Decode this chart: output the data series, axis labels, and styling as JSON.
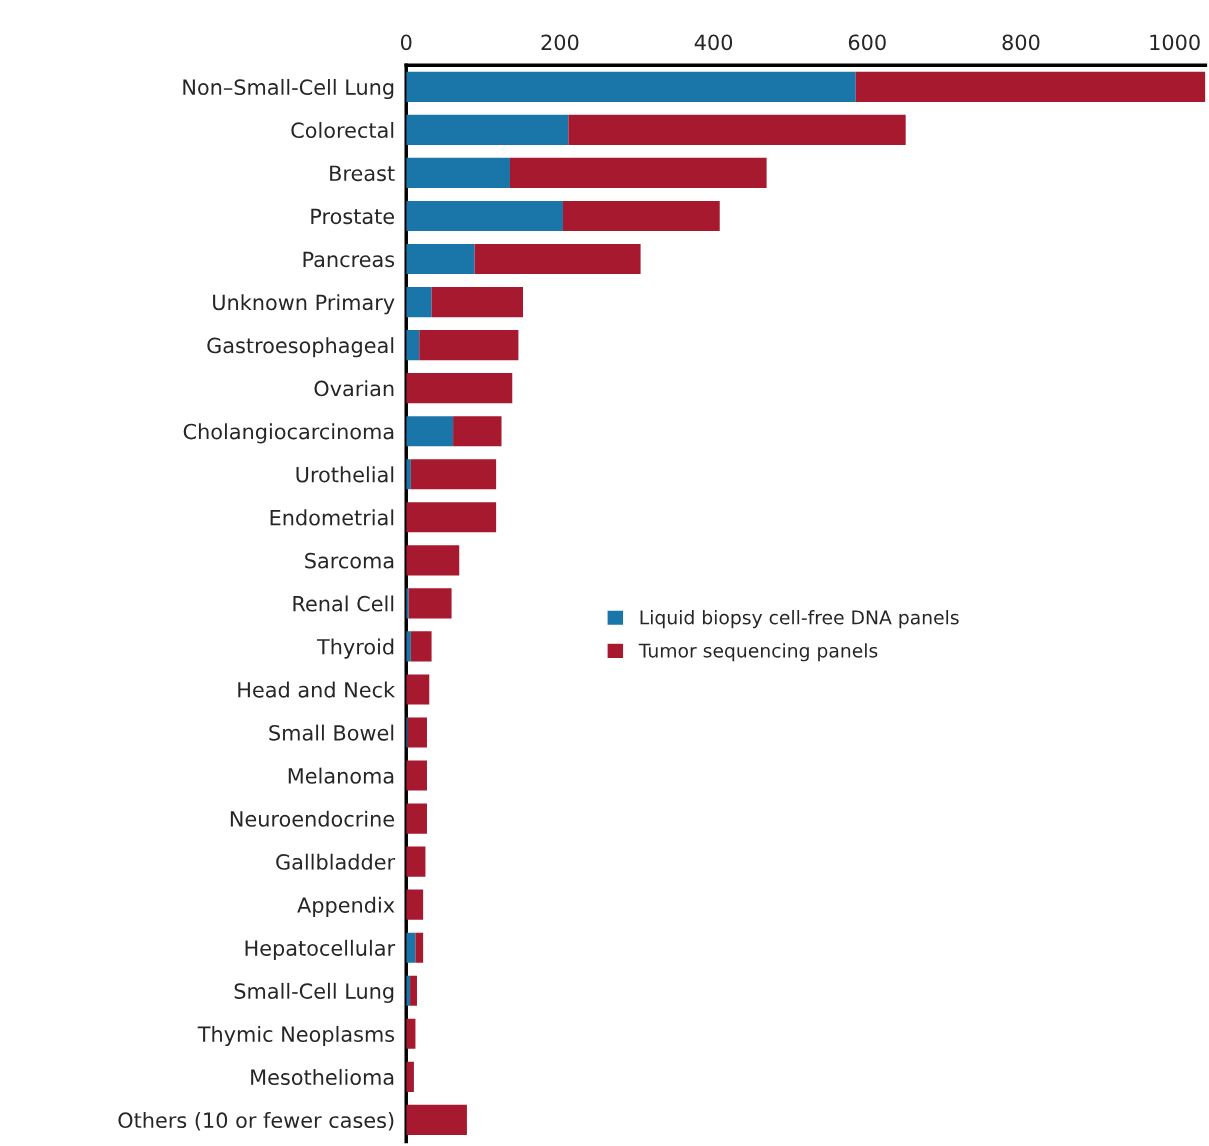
{
  "chart_data": {
    "type": "bar",
    "orientation": "horizontal",
    "stacked": true,
    "categories": [
      "Non–Small-Cell Lung",
      "Colorectal",
      "Breast",
      "Prostate",
      "Pancreas",
      "Unknown Primary",
      "Gastroesophageal",
      "Ovarian",
      "Cholangiocarcinoma",
      "Urothelial",
      "Endometrial",
      "Sarcoma",
      "Renal Cell",
      "Thyroid",
      "Head and Neck",
      "Small Bowel",
      "Melanoma",
      "Neuroendocrine",
      "Gallbladder",
      "Appendix",
      "Hepatocellular",
      "Small-Cell Lung",
      "Thymic Neoplasms",
      "Mesothelioma",
      "Others (10 or fewer cases)"
    ],
    "series": [
      {
        "name": "Liquid biopsy cell-free DNA panels",
        "color": "#1a75a8",
        "values": [
          585,
          211,
          135,
          204,
          89,
          33,
          17,
          0,
          61,
          6,
          0,
          0,
          3,
          6,
          0,
          2,
          0,
          0,
          0,
          null,
          12,
          5,
          0,
          0,
          0
        ]
      },
      {
        "name": "Tumor sequencing panels",
        "color": "#a6192e",
        "values": [
          455,
          439,
          334,
          204,
          216,
          119,
          129,
          138,
          63,
          111,
          117,
          69,
          56,
          27,
          30,
          25,
          27,
          27,
          25,
          22,
          10,
          9,
          12,
          10,
          79
        ]
      }
    ],
    "xlim": [
      0,
      1040
    ],
    "xticks": [
      0,
      200,
      400,
      600,
      800,
      1000
    ],
    "grid": false,
    "legend": "right"
  }
}
